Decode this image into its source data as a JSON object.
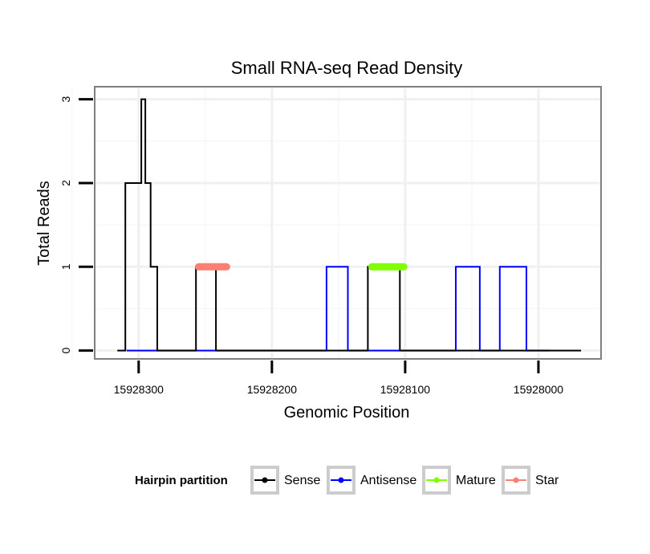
{
  "chart_data": {
    "type": "line",
    "title": "Small RNA-seq Read Density",
    "xlabel": "Genomic Position",
    "ylabel": "Total Reads",
    "x_reversed": true,
    "xlim": [
      15928333,
      15927953
    ],
    "ylim": [
      -0.1,
      3.15
    ],
    "x_ticks": [
      15928300,
      15928200,
      15928100,
      15928000
    ],
    "x_tick_labels": [
      "15928300",
      "15928200",
      "15928100",
      "15928000"
    ],
    "y_ticks": [
      0,
      1,
      2,
      3
    ],
    "y_tick_labels": [
      "0",
      "1",
      "2",
      "3"
    ],
    "grid": true,
    "legend": {
      "title": "Hairpin partition",
      "position": "bottom",
      "entries": [
        {
          "label": "Sense",
          "color": "#000000"
        },
        {
          "label": "Antisense",
          "color": "#0000ff"
        },
        {
          "label": "Mature",
          "color": "#7fff00"
        },
        {
          "label": "Star",
          "color": "#fa8072"
        }
      ]
    },
    "series": [
      {
        "name": "Sense",
        "color": "#000000",
        "x": [
          15928316,
          15928310,
          15928310,
          15928298,
          15928298,
          15928295,
          15928295,
          15928291,
          15928291,
          15928288,
          15928288,
          15928286,
          15928286,
          15928277,
          15928277,
          15928257,
          15928257,
          15928242,
          15928242,
          15928226,
          15928226,
          15928128,
          15928128,
          15928104,
          15928104,
          15927968
        ],
        "y": [
          0,
          0,
          2,
          2,
          3,
          3,
          2,
          2,
          1,
          1,
          1,
          1,
          0,
          0,
          0,
          0,
          1,
          1,
          0,
          0,
          0,
          0,
          1,
          1,
          0,
          0
        ]
      },
      {
        "name": "Antisense",
        "color": "#0000ff",
        "x": [
          15928309,
          15928159,
          15928159,
          15928143,
          15928143,
          15928062,
          15928062,
          15928044,
          15928044,
          15928029,
          15928029,
          15928009,
          15928009,
          15927992
        ],
        "y": [
          0,
          0,
          1,
          1,
          0,
          0,
          1,
          1,
          0,
          0,
          1,
          1,
          0,
          0
        ]
      },
      {
        "name": "Mature",
        "color": "#7fff00",
        "x": [
          15928125,
          15928101
        ],
        "y": [
          1,
          1
        ]
      },
      {
        "name": "Star",
        "color": "#fa8072",
        "x": [
          15928255,
          15928234
        ],
        "y": [
          1,
          1
        ]
      }
    ]
  }
}
